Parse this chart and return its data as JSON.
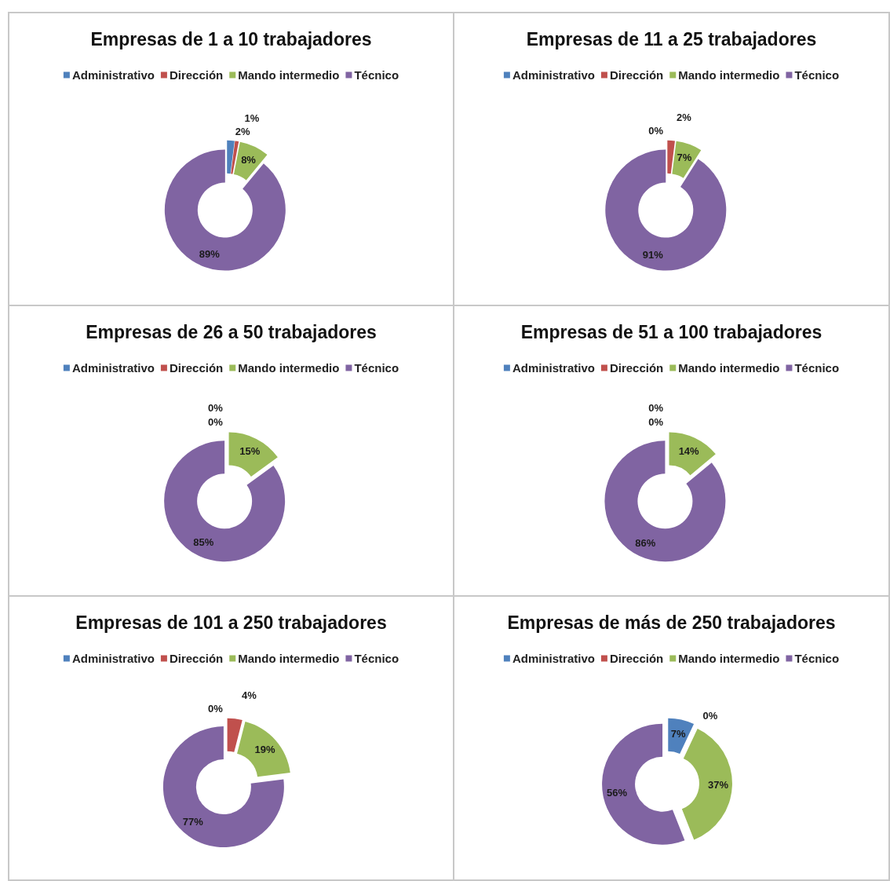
{
  "chart_data": [
    {
      "type": "donut",
      "title": "Empresas de 1 a 10 trabajadores",
      "categories": [
        "Administrativo",
        "Dirección",
        "Mando intermedio",
        "Técnico"
      ],
      "values": [
        2,
        1,
        8,
        89
      ],
      "colors": [
        "#4f81bd",
        "#c0504d",
        "#9bbb59",
        "#8064a2"
      ],
      "value_labels": [
        "2%",
        "1%",
        "8%",
        "89%"
      ],
      "legend": "top"
    },
    {
      "type": "donut",
      "title": "Empresas de 11 a 25 trabajadores",
      "categories": [
        "Administrativo",
        "Dirección",
        "Mando intermedio",
        "Técnico"
      ],
      "values": [
        0,
        2,
        7,
        91
      ],
      "colors": [
        "#4f81bd",
        "#c0504d",
        "#9bbb59",
        "#8064a2"
      ],
      "value_labels": [
        "0%",
        "2%",
        "7%",
        "91%"
      ],
      "legend": "top"
    },
    {
      "type": "donut",
      "title": "Empresas de 26 a 50 trabajadores",
      "categories": [
        "Administrativo",
        "Dirección",
        "Mando intermedio",
        "Técnico"
      ],
      "values": [
        0,
        0,
        15,
        85
      ],
      "colors": [
        "#4f81bd",
        "#c0504d",
        "#9bbb59",
        "#8064a2"
      ],
      "value_labels": [
        "0%",
        "0%",
        "15%",
        "85%"
      ],
      "legend": "top"
    },
    {
      "type": "donut",
      "title": "Empresas de 51 a 100 trabajadores",
      "categories": [
        "Administrativo",
        "Dirección",
        "Mando intermedio",
        "Técnico"
      ],
      "values": [
        0,
        0,
        14,
        86
      ],
      "colors": [
        "#4f81bd",
        "#c0504d",
        "#9bbb59",
        "#8064a2"
      ],
      "value_labels": [
        "0%",
        "0%",
        "14%",
        "86%"
      ],
      "legend": "top"
    },
    {
      "type": "donut",
      "title": "Empresas de 101 a 250 trabajadores",
      "categories": [
        "Administrativo",
        "Dirección",
        "Mando intermedio",
        "Técnico"
      ],
      "values": [
        0,
        4,
        19,
        77
      ],
      "colors": [
        "#4f81bd",
        "#c0504d",
        "#9bbb59",
        "#8064a2"
      ],
      "value_labels": [
        "0%",
        "4%",
        "19%",
        "77%"
      ],
      "legend": "top"
    },
    {
      "type": "donut",
      "title": "Empresas de más de 250 trabajadores",
      "categories": [
        "Administrativo",
        "Dirección",
        "Mando intermedio",
        "Técnico"
      ],
      "values": [
        7,
        0,
        37,
        56
      ],
      "colors": [
        "#4f81bd",
        "#c0504d",
        "#9bbb59",
        "#8064a2"
      ],
      "value_labels": [
        "7%",
        "0%",
        "37%",
        "56%"
      ],
      "legend": "top"
    }
  ]
}
